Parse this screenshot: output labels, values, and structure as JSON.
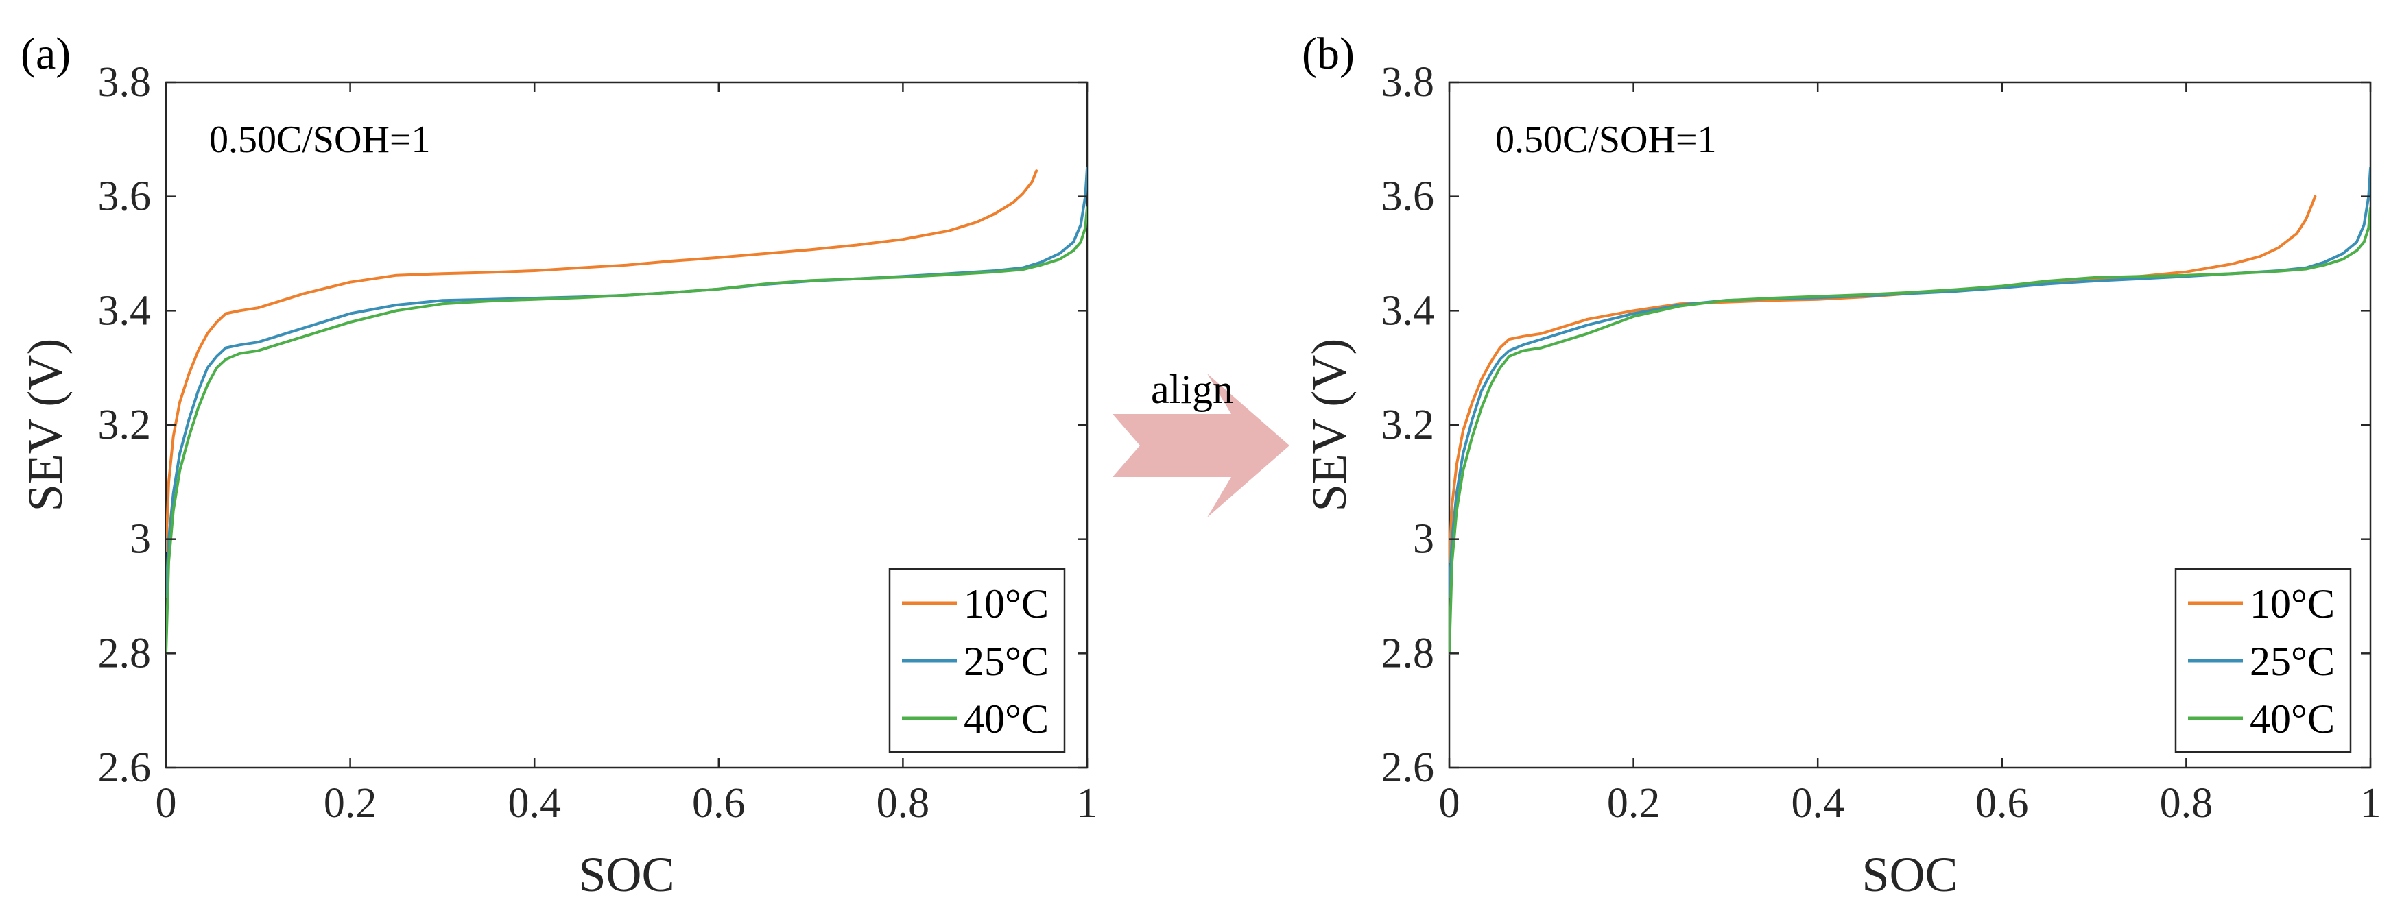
{
  "figure": {
    "arrow_label": "align",
    "arrow_color": "#e8b4b4"
  },
  "chart_data": [
    {
      "panel_label": "(a)",
      "type": "line",
      "annotation": "0.50C/SOH=1",
      "xlabel": "SOC",
      "ylabel": "SEV (V)",
      "xlim": [
        0,
        1
      ],
      "ylim": [
        2.6,
        3.8
      ],
      "xticks": [
        0,
        0.2,
        0.4,
        0.6,
        0.8,
        1
      ],
      "xtick_labels": [
        "0",
        "0.2",
        "0.4",
        "0.6",
        "0.8",
        "1"
      ],
      "yticks": [
        2.6,
        2.8,
        3.0,
        3.2,
        3.4,
        3.6,
        3.8
      ],
      "ytick_labels": [
        "2.6",
        "2.8",
        "3",
        "3.2",
        "3.4",
        "3.6",
        "3.8"
      ],
      "grid": false,
      "legend_position": "bottom-right",
      "series": [
        {
          "name": "10°C",
          "color": "#EE7F2D",
          "x": [
            0,
            0.003,
            0.008,
            0.015,
            0.025,
            0.035,
            0.045,
            0.055,
            0.065,
            0.08,
            0.1,
            0.12,
            0.15,
            0.2,
            0.25,
            0.3,
            0.35,
            0.4,
            0.45,
            0.5,
            0.55,
            0.6,
            0.65,
            0.7,
            0.75,
            0.8,
            0.85,
            0.88,
            0.9,
            0.92,
            0.93,
            0.94,
            0.945
          ],
          "y": [
            2.98,
            3.1,
            3.18,
            3.24,
            3.29,
            3.33,
            3.36,
            3.38,
            3.395,
            3.4,
            3.405,
            3.415,
            3.43,
            3.45,
            3.462,
            3.465,
            3.467,
            3.47,
            3.475,
            3.48,
            3.487,
            3.493,
            3.5,
            3.507,
            3.515,
            3.525,
            3.54,
            3.555,
            3.57,
            3.59,
            3.605,
            3.625,
            3.645
          ]
        },
        {
          "name": "25°C",
          "color": "#3A8FB7",
          "x": [
            0,
            0.003,
            0.008,
            0.015,
            0.025,
            0.035,
            0.045,
            0.055,
            0.065,
            0.08,
            0.1,
            0.12,
            0.15,
            0.2,
            0.25,
            0.3,
            0.35,
            0.4,
            0.45,
            0.5,
            0.55,
            0.6,
            0.65,
            0.7,
            0.75,
            0.8,
            0.85,
            0.9,
            0.93,
            0.95,
            0.97,
            0.985,
            0.993,
            0.998,
            1.0
          ],
          "y": [
            2.9,
            3.0,
            3.08,
            3.15,
            3.21,
            3.26,
            3.3,
            3.32,
            3.335,
            3.34,
            3.345,
            3.355,
            3.37,
            3.395,
            3.41,
            3.418,
            3.42,
            3.422,
            3.424,
            3.427,
            3.432,
            3.438,
            3.446,
            3.452,
            3.456,
            3.46,
            3.465,
            3.47,
            3.475,
            3.485,
            3.5,
            3.52,
            3.55,
            3.6,
            3.65
          ]
        },
        {
          "name": "40°C",
          "color": "#4DAF4A",
          "x": [
            0,
            0.003,
            0.008,
            0.015,
            0.025,
            0.035,
            0.045,
            0.055,
            0.065,
            0.08,
            0.1,
            0.12,
            0.15,
            0.2,
            0.25,
            0.3,
            0.35,
            0.4,
            0.45,
            0.5,
            0.55,
            0.6,
            0.65,
            0.7,
            0.75,
            0.8,
            0.85,
            0.9,
            0.93,
            0.95,
            0.97,
            0.985,
            0.993,
            0.998,
            1.0
          ],
          "y": [
            2.8,
            2.96,
            3.05,
            3.12,
            3.18,
            3.23,
            3.27,
            3.3,
            3.315,
            3.325,
            3.33,
            3.34,
            3.355,
            3.38,
            3.4,
            3.412,
            3.417,
            3.42,
            3.423,
            3.427,
            3.432,
            3.438,
            3.447,
            3.453,
            3.456,
            3.459,
            3.463,
            3.468,
            3.472,
            3.48,
            3.49,
            3.505,
            3.52,
            3.545,
            3.58
          ]
        }
      ]
    },
    {
      "panel_label": "(b)",
      "type": "line",
      "annotation": "0.50C/SOH=1",
      "xlabel": "SOC",
      "ylabel": "SEV (V)",
      "xlim": [
        0,
        1
      ],
      "ylim": [
        2.6,
        3.8
      ],
      "xticks": [
        0,
        0.2,
        0.4,
        0.6,
        0.8,
        1
      ],
      "xtick_labels": [
        "0",
        "0.2",
        "0.4",
        "0.6",
        "0.8",
        "1"
      ],
      "yticks": [
        2.6,
        2.8,
        3.0,
        3.2,
        3.4,
        3.6,
        3.8
      ],
      "ytick_labels": [
        "2.6",
        "2.8",
        "3",
        "3.2",
        "3.4",
        "3.6",
        "3.8"
      ],
      "grid": false,
      "legend_position": "bottom-right",
      "series": [
        {
          "name": "10°C",
          "color": "#EE7F2D",
          "x": [
            0,
            0.003,
            0.008,
            0.015,
            0.025,
            0.035,
            0.045,
            0.055,
            0.065,
            0.08,
            0.1,
            0.12,
            0.15,
            0.2,
            0.25,
            0.3,
            0.35,
            0.4,
            0.45,
            0.5,
            0.55,
            0.6,
            0.65,
            0.7,
            0.75,
            0.8,
            0.85,
            0.88,
            0.9,
            0.92,
            0.93,
            0.94
          ],
          "y": [
            2.96,
            3.06,
            3.13,
            3.19,
            3.24,
            3.28,
            3.31,
            3.335,
            3.35,
            3.355,
            3.36,
            3.37,
            3.385,
            3.4,
            3.412,
            3.415,
            3.418,
            3.42,
            3.424,
            3.43,
            3.436,
            3.442,
            3.45,
            3.455,
            3.46,
            3.468,
            3.482,
            3.495,
            3.51,
            3.535,
            3.56,
            3.6
          ]
        },
        {
          "name": "25°C",
          "color": "#3A8FB7",
          "x": [
            0,
            0.003,
            0.008,
            0.015,
            0.025,
            0.035,
            0.045,
            0.055,
            0.065,
            0.08,
            0.1,
            0.12,
            0.15,
            0.2,
            0.25,
            0.3,
            0.35,
            0.4,
            0.45,
            0.5,
            0.55,
            0.6,
            0.65,
            0.7,
            0.75,
            0.8,
            0.85,
            0.9,
            0.93,
            0.95,
            0.97,
            0.985,
            0.993,
            0.998,
            1.0
          ],
          "y": [
            2.9,
            3.0,
            3.08,
            3.15,
            3.21,
            3.26,
            3.29,
            3.315,
            3.33,
            3.34,
            3.35,
            3.36,
            3.375,
            3.395,
            3.41,
            3.418,
            3.421,
            3.423,
            3.426,
            3.43,
            3.434,
            3.44,
            3.447,
            3.452,
            3.456,
            3.46,
            3.465,
            3.47,
            3.475,
            3.485,
            3.5,
            3.52,
            3.55,
            3.6,
            3.65
          ]
        },
        {
          "name": "40°C",
          "color": "#4DAF4A",
          "x": [
            0,
            0.003,
            0.008,
            0.015,
            0.025,
            0.035,
            0.045,
            0.055,
            0.065,
            0.08,
            0.1,
            0.12,
            0.15,
            0.2,
            0.25,
            0.3,
            0.35,
            0.4,
            0.45,
            0.5,
            0.55,
            0.6,
            0.65,
            0.7,
            0.75,
            0.8,
            0.85,
            0.9,
            0.93,
            0.95,
            0.97,
            0.985,
            0.993,
            0.998,
            1.0
          ],
          "y": [
            2.8,
            2.96,
            3.05,
            3.12,
            3.18,
            3.23,
            3.27,
            3.3,
            3.32,
            3.33,
            3.335,
            3.345,
            3.36,
            3.39,
            3.408,
            3.418,
            3.422,
            3.425,
            3.428,
            3.432,
            3.437,
            3.443,
            3.452,
            3.458,
            3.46,
            3.462,
            3.465,
            3.469,
            3.473,
            3.48,
            3.49,
            3.505,
            3.52,
            3.545,
            3.58
          ]
        }
      ]
    }
  ]
}
